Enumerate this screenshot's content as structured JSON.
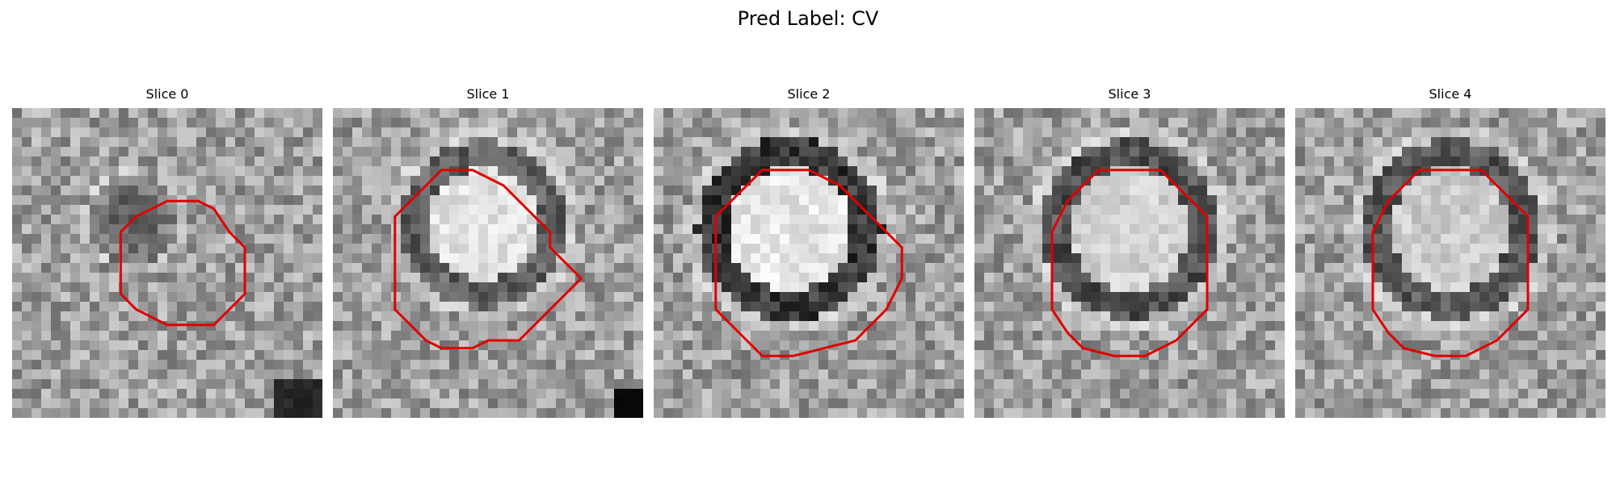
{
  "figure": {
    "title": "Pred Label: CV"
  },
  "slices": [
    {
      "title": "Slice 0",
      "center_intensity": 0.38,
      "ring_intensity": 0.5,
      "contour": "small red polygon"
    },
    {
      "title": "Slice 1",
      "center_intensity": 0.88,
      "ring_intensity": 0.38,
      "contour": "red polygon"
    },
    {
      "title": "Slice 2",
      "center_intensity": 0.9,
      "ring_intensity": 0.22,
      "contour": "red polygon"
    },
    {
      "title": "Slice 3",
      "center_intensity": 0.82,
      "ring_intensity": 0.32,
      "contour": "red polygon"
    },
    {
      "title": "Slice 4",
      "center_intensity": 0.8,
      "ring_intensity": 0.34,
      "contour": "red polygon"
    }
  ],
  "colors": {
    "contour": "#e00000"
  }
}
